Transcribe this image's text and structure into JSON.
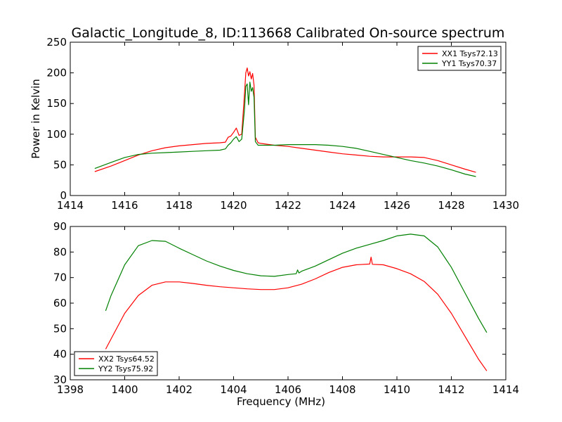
{
  "figure": {
    "title": "Galactic_Longitude_8, ID:113668 Calibrated On-source spectrum"
  },
  "chart_data": [
    {
      "type": "line",
      "title": "Galactic_Longitude_8, ID:113668 Calibrated On-source spectrum",
      "xlabel": "",
      "ylabel": "Power in Kelvin",
      "xlim": [
        1414,
        1430
      ],
      "ylim": [
        0,
        250
      ],
      "xticks": [
        1414,
        1416,
        1418,
        1420,
        1422,
        1424,
        1426,
        1428,
        1430
      ],
      "yticks": [
        0,
        50,
        100,
        150,
        200,
        250
      ],
      "grid": false,
      "legend_position": "top-right",
      "series": [
        {
          "name": "XX1 Tsys72.13",
          "color": "#ff0000",
          "x": [
            1414.9,
            1415.5,
            1416.0,
            1416.5,
            1417.0,
            1417.5,
            1418.0,
            1418.5,
            1419.0,
            1419.5,
            1419.7,
            1419.8,
            1419.9,
            1420.0,
            1420.1,
            1420.2,
            1420.3,
            1420.4,
            1420.45,
            1420.5,
            1420.55,
            1420.6,
            1420.65,
            1420.7,
            1420.75,
            1420.8,
            1420.9,
            1421.0,
            1421.5,
            1422.0,
            1422.5,
            1423.0,
            1423.5,
            1424.0,
            1424.5,
            1425.0,
            1425.5,
            1426.0,
            1426.5,
            1427.0,
            1427.5,
            1428.0,
            1428.5,
            1428.9
          ],
          "y": [
            39,
            48,
            57,
            66,
            73,
            78,
            81,
            83,
            85,
            86,
            87,
            95,
            97,
            103,
            110,
            98,
            100,
            165,
            200,
            208,
            195,
            202,
            190,
            199,
            180,
            95,
            86,
            85,
            82,
            80,
            77,
            74,
            71,
            68,
            66,
            64,
            63,
            63,
            63,
            62,
            57,
            50,
            43,
            38
          ]
        },
        {
          "name": "YY1 Tsys70.37",
          "color": "#008000",
          "x": [
            1414.9,
            1415.5,
            1416.0,
            1416.5,
            1417.0,
            1417.5,
            1418.0,
            1418.5,
            1419.0,
            1419.5,
            1419.7,
            1419.8,
            1419.9,
            1420.0,
            1420.1,
            1420.2,
            1420.3,
            1420.4,
            1420.45,
            1420.5,
            1420.55,
            1420.6,
            1420.65,
            1420.7,
            1420.75,
            1420.8,
            1420.9,
            1421.0,
            1421.5,
            1422.0,
            1422.5,
            1423.0,
            1423.5,
            1424.0,
            1424.5,
            1425.0,
            1425.5,
            1426.0,
            1426.5,
            1427.0,
            1427.5,
            1428.0,
            1428.5,
            1428.9
          ],
          "y": [
            44,
            54,
            62,
            67,
            69,
            70,
            71,
            72,
            73,
            74,
            76,
            82,
            86,
            92,
            96,
            88,
            92,
            140,
            178,
            182,
            148,
            185,
            170,
            176,
            160,
            88,
            82,
            82,
            82,
            83,
            83,
            83,
            82,
            80,
            77,
            72,
            67,
            62,
            57,
            53,
            48,
            42,
            35,
            31
          ]
        }
      ]
    },
    {
      "type": "line",
      "title": "",
      "xlabel": "Frequency (MHz)",
      "ylabel": "",
      "xlim": [
        1398,
        1414
      ],
      "ylim": [
        30,
        90
      ],
      "xticks": [
        1398,
        1400,
        1402,
        1404,
        1406,
        1408,
        1410,
        1412,
        1414
      ],
      "yticks": [
        30,
        40,
        50,
        60,
        70,
        80,
        90
      ],
      "grid": false,
      "legend_position": "bottom-left",
      "series": [
        {
          "name": "XX2 Tsys64.52",
          "color": "#ff0000",
          "x": [
            1399.3,
            1399.5,
            1400.0,
            1400.5,
            1401.0,
            1401.5,
            1402.0,
            1402.5,
            1403.0,
            1403.5,
            1404.0,
            1404.5,
            1405.0,
            1405.5,
            1406.0,
            1406.5,
            1407.0,
            1407.5,
            1408.0,
            1408.5,
            1409.0,
            1409.05,
            1409.1,
            1409.5,
            1410.0,
            1410.5,
            1411.0,
            1411.5,
            1412.0,
            1412.5,
            1413.0,
            1413.3
          ],
          "y": [
            42,
            46,
            56,
            63,
            67,
            68.3,
            68.3,
            67.7,
            67,
            66.4,
            66,
            65.6,
            65.3,
            65.3,
            66,
            67.4,
            69.5,
            72,
            74,
            75,
            75.3,
            78,
            75.2,
            75,
            73.5,
            71.5,
            68.5,
            63.5,
            56,
            47,
            38,
            33.5
          ]
        },
        {
          "name": "YY2 Tsys75.92",
          "color": "#008000",
          "x": [
            1399.3,
            1399.5,
            1400.0,
            1400.5,
            1401.0,
            1401.5,
            1402.0,
            1402.5,
            1403.0,
            1403.5,
            1404.0,
            1404.5,
            1405.0,
            1405.5,
            1406.0,
            1406.3,
            1406.35,
            1406.4,
            1406.5,
            1407.0,
            1407.5,
            1408.0,
            1408.5,
            1409.0,
            1409.5,
            1410.0,
            1410.5,
            1411.0,
            1411.5,
            1412.0,
            1412.5,
            1413.0,
            1413.3
          ],
          "y": [
            57,
            63,
            75,
            82.5,
            84.5,
            84.2,
            81.5,
            79,
            76.5,
            74.5,
            72.8,
            71.5,
            70.7,
            70.5,
            71.2,
            71.5,
            73,
            71.8,
            72.5,
            74.5,
            77,
            79.5,
            81.5,
            83,
            84.5,
            86.3,
            87,
            86.3,
            82,
            74,
            64,
            54,
            48.5
          ]
        }
      ]
    }
  ]
}
